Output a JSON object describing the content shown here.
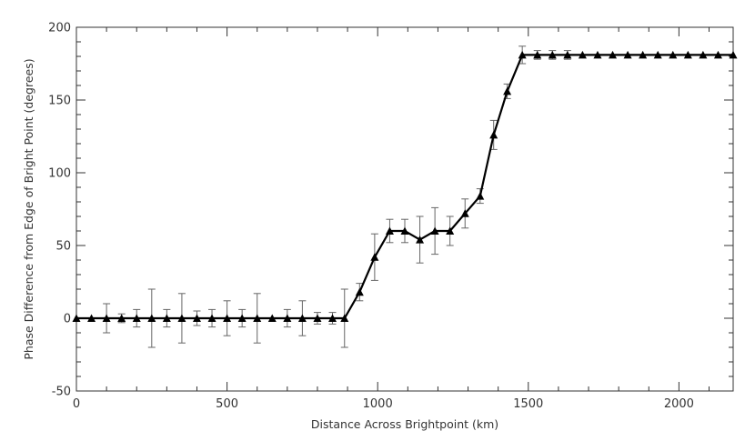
{
  "chart_data": {
    "type": "line",
    "xlabel": "Distance Across Brightpoint (km)",
    "ylabel": "Phase Difference from Edge of Bright Point (degrees)",
    "xlim": [
      0,
      2180
    ],
    "ylim": [
      -50,
      200
    ],
    "xticks": [
      0,
      500,
      1000,
      1500,
      2000
    ],
    "yticks": [
      -50,
      0,
      50,
      100,
      150,
      200
    ],
    "grid": false,
    "marker": "triangle",
    "series": [
      {
        "x": [
          0,
          50,
          100,
          150,
          200,
          250,
          300,
          350,
          400,
          450,
          500,
          550,
          600,
          650,
          700,
          750,
          800,
          850,
          890,
          940,
          990,
          1040,
          1090,
          1140,
          1190,
          1240,
          1290,
          1340,
          1385,
          1430,
          1480,
          1530,
          1580,
          1630,
          1680,
          1730,
          1780,
          1830,
          1880,
          1930,
          1980,
          2030,
          2080,
          2130,
          2180
        ],
        "y": [
          0,
          0,
          0,
          0,
          0,
          0,
          0,
          0,
          0,
          0,
          0,
          0,
          0,
          0,
          0,
          0,
          0,
          0,
          0,
          18,
          42,
          60,
          60,
          54,
          60,
          60,
          72,
          84,
          126,
          156,
          181,
          181,
          181,
          181,
          181,
          181,
          181,
          181,
          181,
          181,
          181,
          181,
          181,
          181,
          181
        ],
        "yerr": [
          0,
          0,
          10,
          3,
          6,
          20,
          6,
          17,
          5,
          6,
          12,
          6,
          17,
          0,
          6,
          12,
          4,
          4,
          20,
          6,
          16,
          8,
          8,
          16,
          16,
          10,
          10,
          5,
          10,
          5,
          6,
          3,
          3,
          3,
          0,
          0,
          0,
          0,
          0,
          0,
          0,
          0,
          0,
          0,
          0
        ]
      }
    ]
  }
}
